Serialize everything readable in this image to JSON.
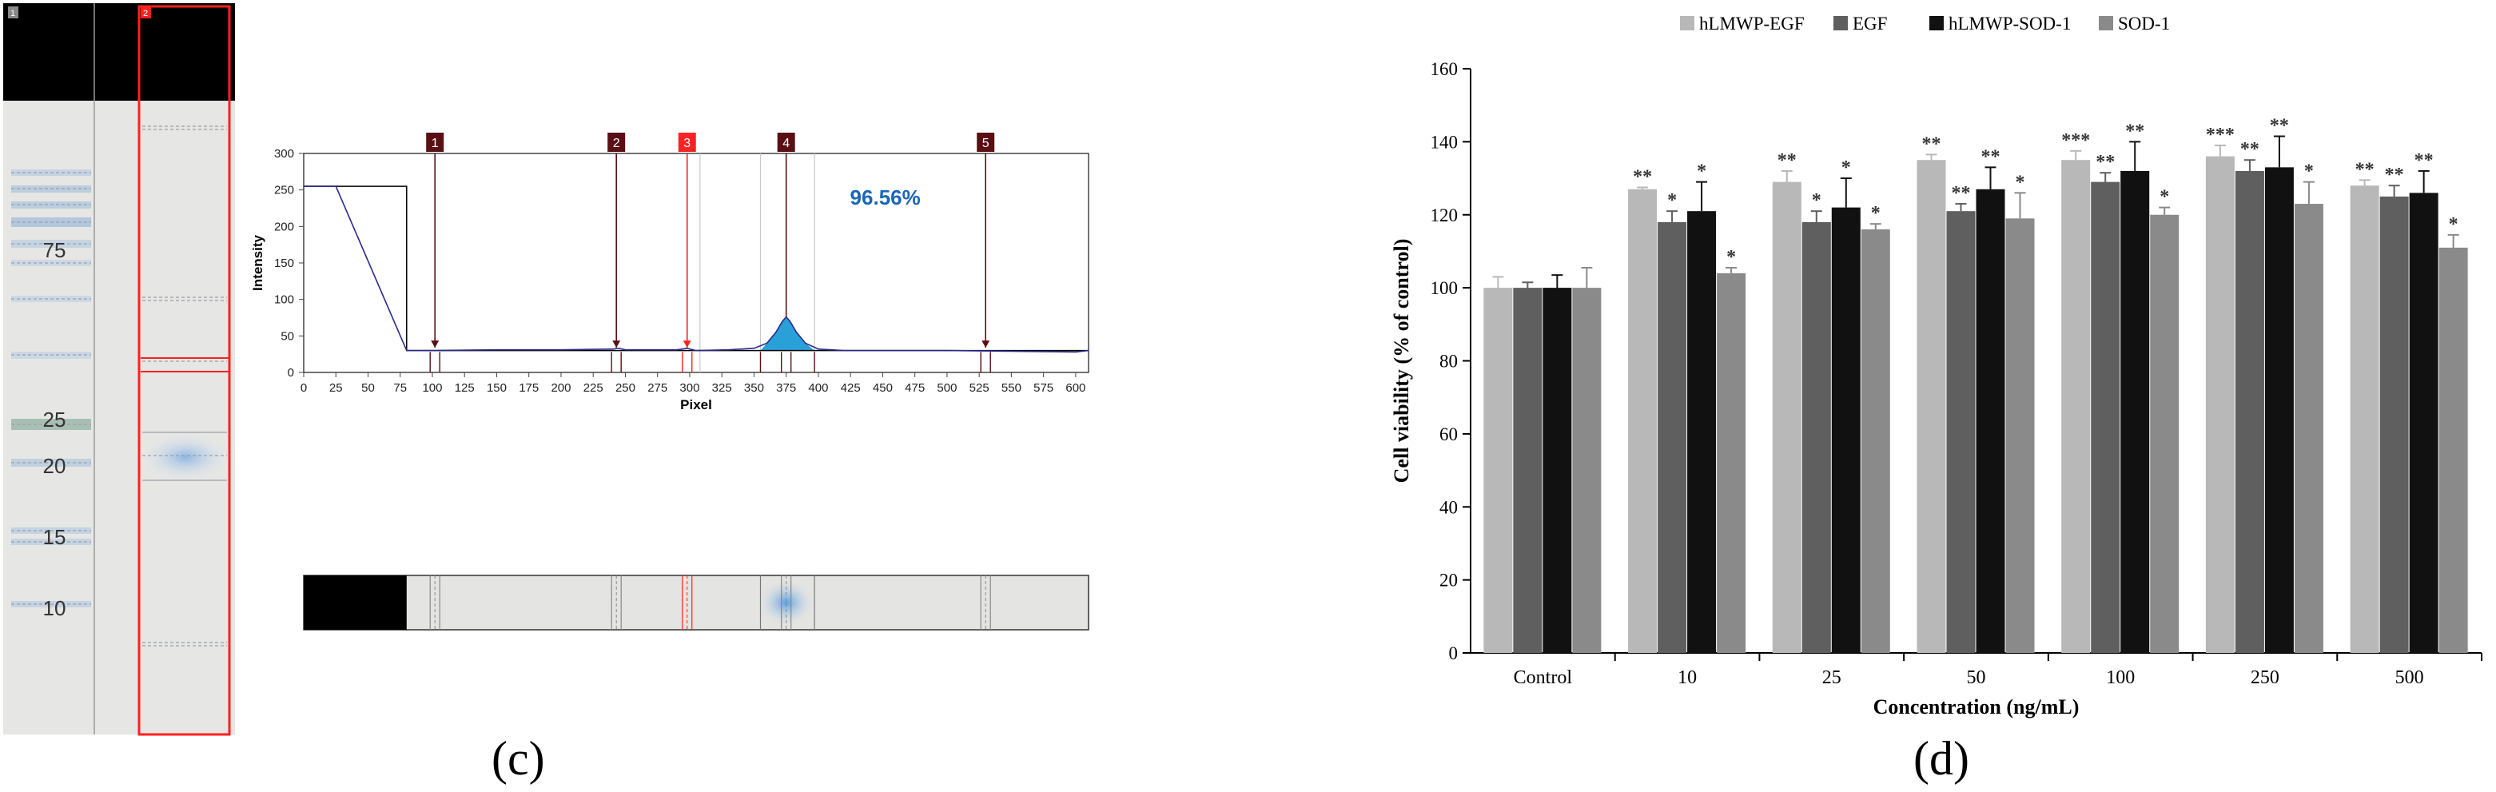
{
  "gel": {
    "lane1_number": "1",
    "lane2_number": "2",
    "marker_labels": [
      "75",
      "25",
      "20",
      "15",
      "10"
    ],
    "colors": {
      "background": "#e6e6e4",
      "header": "#000000",
      "lane2_border": "#ff2020",
      "band": "#9fc2e6"
    }
  },
  "panel_labels": {
    "c": "(c)",
    "d": "(d)"
  },
  "chart_data": [
    {
      "type": "line",
      "title": "",
      "xlabel": "Pixel",
      "ylabel": "Intensity",
      "xlim": [
        0,
        610
      ],
      "ylim": [
        0,
        300
      ],
      "x_ticks": [
        0,
        25,
        50,
        75,
        100,
        125,
        150,
        175,
        200,
        225,
        250,
        275,
        300,
        325,
        350,
        375,
        400,
        425,
        450,
        475,
        500,
        525,
        550,
        575,
        600
      ],
      "y_ticks": [
        0,
        50,
        100,
        150,
        200,
        250,
        300
      ],
      "annotation": "96.56%",
      "lane_markers": [
        {
          "label": "1",
          "x": 102,
          "highlight": false
        },
        {
          "label": "2",
          "x": 243,
          "highlight": false
        },
        {
          "label": "3",
          "x": 298,
          "highlight": true
        },
        {
          "label": "4",
          "x": 375,
          "highlight": false
        },
        {
          "label": "5",
          "x": 530,
          "highlight": false
        }
      ],
      "profile_line": {
        "x": [
          0,
          25,
          80,
          100,
          150,
          200,
          240,
          245,
          250,
          290,
          298,
          305,
          330,
          350,
          360,
          367,
          372,
          375,
          378,
          383,
          390,
          400,
          420,
          500,
          600,
          610
        ],
        "y": [
          255,
          255,
          30,
          30,
          31,
          31,
          32,
          33,
          31,
          31,
          33,
          30,
          31,
          33,
          40,
          55,
          70,
          76,
          70,
          55,
          40,
          32,
          30,
          30,
          28,
          30
        ]
      },
      "region_line": {
        "x": [
          0,
          80,
          80,
          610
        ],
        "y": [
          255,
          255,
          30,
          30
        ]
      },
      "peak_region": {
        "x_start": 355,
        "x_end": 397
      },
      "colors": {
        "profile": "#2a2a8a",
        "peak_fill": "#2aa0d8",
        "marker": "#5a0f14",
        "marker_highlight": "#ff2222",
        "annotation": "#1a66b8"
      }
    },
    {
      "type": "bar",
      "title": "",
      "xlabel": "Concentration (ng/mL)",
      "ylabel": "Cell viability (% of control)",
      "ylim": [
        0,
        160
      ],
      "y_ticks": [
        0,
        20,
        40,
        60,
        80,
        100,
        120,
        140,
        160
      ],
      "categories": [
        "Control",
        "10",
        "25",
        "50",
        "100",
        "250",
        "500"
      ],
      "series": [
        {
          "name": "hLMWP-EGF",
          "color": "#b8b8b8",
          "values": [
            100,
            127,
            129,
            135,
            135,
            136,
            128
          ],
          "errors": [
            3,
            0.5,
            3,
            1.5,
            2.5,
            3,
            1.5
          ],
          "labels": [
            "",
            "**",
            "**",
            "**",
            "***",
            "***",
            "**"
          ]
        },
        {
          "name": "EGF",
          "color": "#5f5f5f",
          "values": [
            100,
            118,
            118,
            121,
            129,
            132,
            125
          ],
          "errors": [
            1.5,
            3,
            3,
            2,
            2.5,
            3,
            3
          ],
          "labels": [
            "",
            "*",
            "*",
            "**",
            "**",
            "**",
            "**"
          ]
        },
        {
          "name": "hLMWP-SOD-1",
          "color": "#111111",
          "values": [
            100,
            121,
            122,
            127,
            132,
            133,
            126
          ],
          "errors": [
            3.5,
            8,
            8,
            6,
            8,
            8.5,
            6
          ],
          "labels": [
            "",
            "*",
            "*",
            "**",
            "**",
            "**",
            "**"
          ]
        },
        {
          "name": "SOD-1",
          "color": "#8a8a8a",
          "values": [
            100,
            104,
            116,
            119,
            120,
            123,
            111
          ],
          "errors": [
            5.5,
            1.5,
            1.5,
            7,
            2,
            6,
            3.5
          ],
          "labels": [
            "",
            "*",
            "*",
            "*",
            "*",
            "*",
            "*"
          ]
        }
      ],
      "legend_position": "top"
    }
  ]
}
